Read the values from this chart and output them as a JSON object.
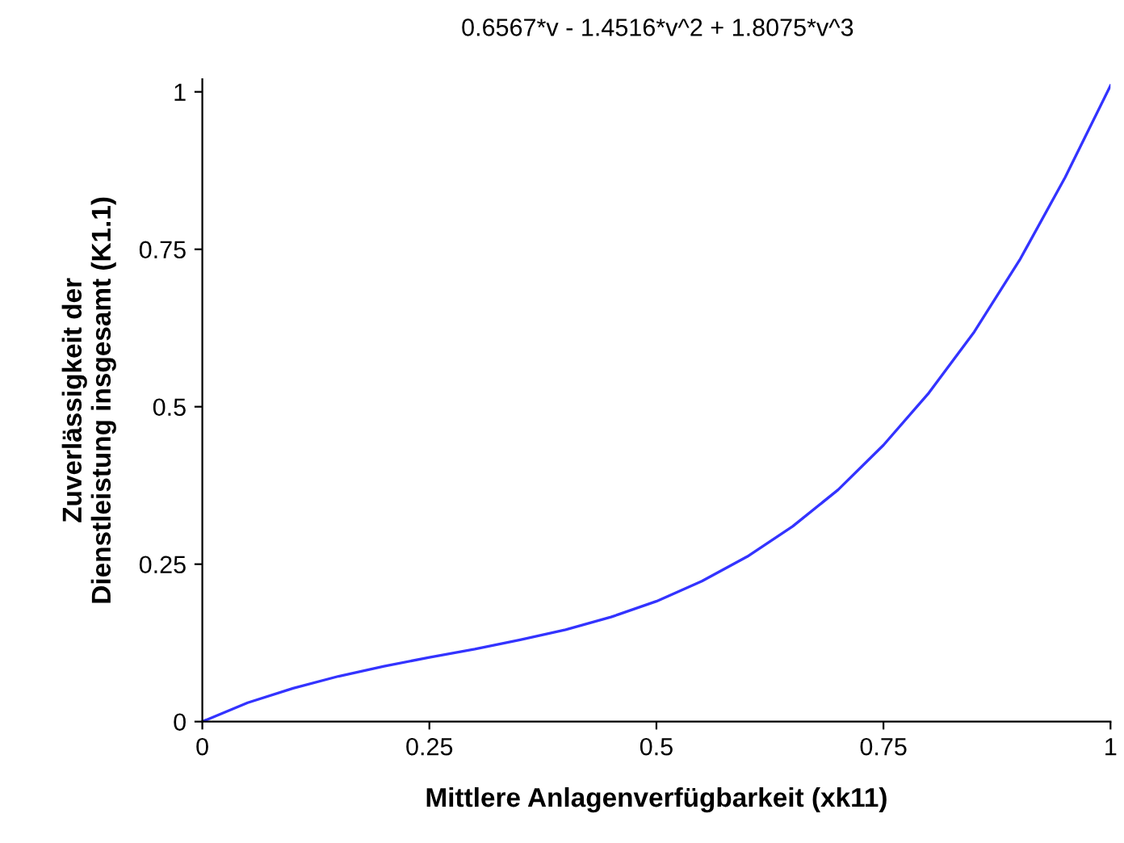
{
  "chart_data": {
    "type": "line",
    "title": "0.6567*v - 1.4516*v^2 + 1.8075*v^3",
    "xlabel": "Mittlere Anlagenverfügbarkeit (xk11)",
    "ylabel": "Zuverlässigkeit der\nDienstleistung insgesamt (K1.1)",
    "x": [
      0,
      0.05,
      0.1,
      0.15,
      0.2,
      0.25,
      0.3,
      0.35,
      0.4,
      0.45,
      0.5,
      0.55,
      0.6,
      0.65,
      0.7,
      0.75,
      0.8,
      0.85,
      0.9,
      0.95,
      1
    ],
    "series": [
      {
        "color": "#3333ff",
        "values": [
          0,
          0.03,
          0.053,
          0.072,
          0.088,
          0.102,
          0.115,
          0.13,
          0.146,
          0.166,
          0.191,
          0.223,
          0.262,
          0.31,
          0.368,
          0.439,
          0.522,
          0.619,
          0.733,
          0.864,
          1.01
        ]
      }
    ],
    "xlim": [
      0,
      1
    ],
    "ylim": [
      0,
      1.02
    ],
    "xticks": [
      0,
      0.25,
      0.5,
      0.75,
      1
    ],
    "yticks": [
      0,
      0.25,
      0.5,
      0.75,
      1
    ],
    "grid": false,
    "legend": false,
    "marker": "none",
    "line_style": "solid"
  }
}
